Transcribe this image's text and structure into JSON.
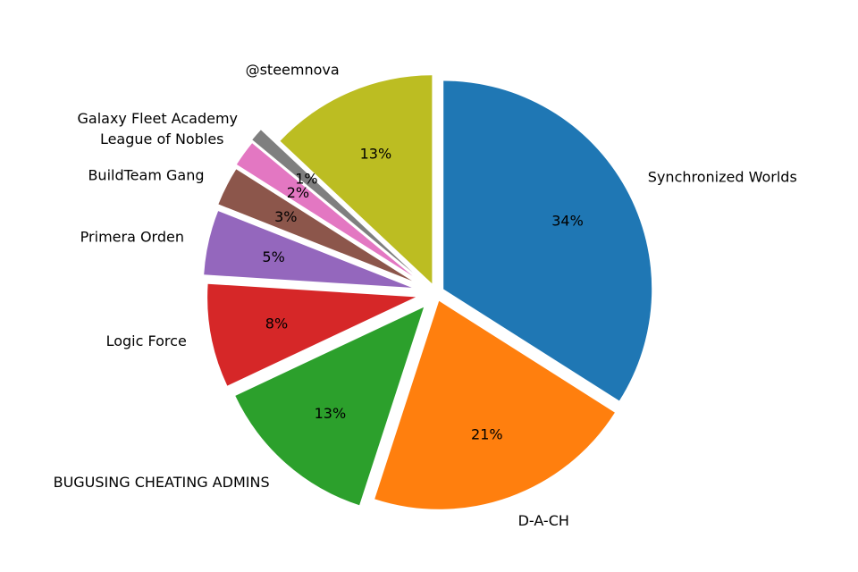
{
  "figure": {
    "background": "#ffffff",
    "title": ""
  },
  "chart_data": {
    "type": "pie",
    "title": "",
    "labels": [
      "Synchronized Worlds",
      "D-A-CH",
      "BUGUSING CHEATING ADMINS",
      "Logic Force",
      "Primera Orden",
      "BuildTeam Gang",
      "League of Nobles",
      "Galaxy Fleet Academy",
      "@steemnova"
    ],
    "values": [
      34,
      21,
      13,
      8,
      5,
      3,
      2,
      1,
      13
    ],
    "pct_labels": [
      "34%",
      "21%",
      "13%",
      "8%",
      "5%",
      "3%",
      "2%",
      "1%",
      "13%"
    ],
    "colors": [
      "#1f77b4",
      "#ff7f0e",
      "#2ca02c",
      "#d62728",
      "#9467bd",
      "#8c564b",
      "#e377c2",
      "#7f7f7f",
      "#bcbd22"
    ],
    "explode": [
      0.04,
      0.04,
      0.09,
      0.1,
      0.12,
      0.13,
      0.14,
      0.15,
      0.05
    ],
    "start_angle": 90,
    "direction": "clockwise",
    "label_color": "#000000",
    "pct_color": "#000000",
    "legend": "none",
    "grid": false
  }
}
